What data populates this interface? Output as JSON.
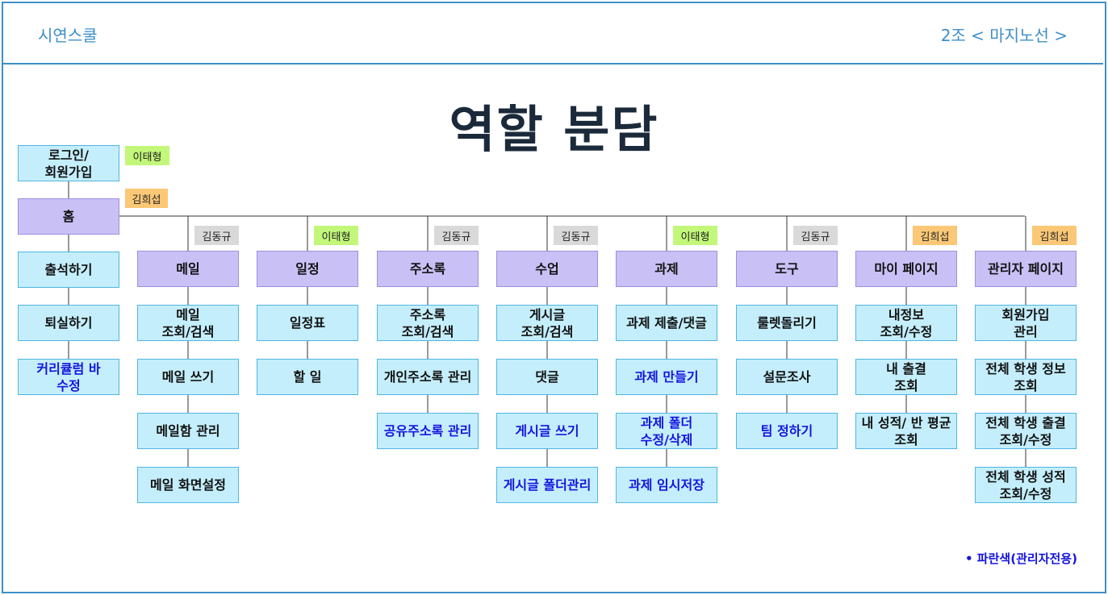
{
  "header": {
    "brand": "시연스쿨",
    "team": "2조 < 마지노선 >"
  },
  "title": "역할 분담",
  "left": {
    "login": "로그인/\n회원가입",
    "login_owner": "이태형",
    "home": "홈",
    "home_owner": "김희섭",
    "items": [
      {
        "label": "출석하기",
        "admin": false
      },
      {
        "label": "퇴실하기",
        "admin": false
      },
      {
        "label": "커리큘럼 바\n수정",
        "admin": true
      }
    ]
  },
  "columns": [
    {
      "label": "메일",
      "owner": "김동규",
      "items": [
        {
          "label": "메일\n조회/검색",
          "admin": false
        },
        {
          "label": "메일 쓰기",
          "admin": false
        },
        {
          "label": "메일함 관리",
          "admin": false
        },
        {
          "label": "메일 화면설정",
          "admin": false
        }
      ]
    },
    {
      "label": "일정",
      "owner": "이태형",
      "items": [
        {
          "label": "일정표",
          "admin": false
        },
        {
          "label": "할 일",
          "admin": false
        }
      ]
    },
    {
      "label": "주소록",
      "owner": "김동규",
      "items": [
        {
          "label": "주소록\n조회/검색",
          "admin": false
        },
        {
          "label": "개인주소록 관리",
          "admin": false
        },
        {
          "label": "공유주소록 관리",
          "admin": true
        }
      ]
    },
    {
      "label": "수업",
      "owner": "김동규",
      "items": [
        {
          "label": "게시글\n조회/검색",
          "admin": false
        },
        {
          "label": "댓글",
          "admin": false
        },
        {
          "label": "게시글 쓰기",
          "admin": true
        },
        {
          "label": "게시글 폴더관리",
          "admin": true
        }
      ]
    },
    {
      "label": "과제",
      "owner": "이태형",
      "items": [
        {
          "label": "과제 제출/댓글",
          "admin": false
        },
        {
          "label": "과제 만들기",
          "admin": true
        },
        {
          "label": "과제 폴더\n수정/삭제",
          "admin": true
        },
        {
          "label": "과제 임시저장",
          "admin": true
        }
      ]
    },
    {
      "label": "도구",
      "owner": "김동규",
      "items": [
        {
          "label": "룰렛돌리기",
          "admin": false
        },
        {
          "label": "설문조사",
          "admin": false
        },
        {
          "label": "팀 정하기",
          "admin": true
        }
      ]
    },
    {
      "label": "마이 페이지",
      "owner": "김희섭",
      "items": [
        {
          "label": "내정보\n조회/수정",
          "admin": false
        },
        {
          "label": "내 출결\n조회",
          "admin": false
        },
        {
          "label": "내 성적/ 반 평균\n조회",
          "admin": false
        }
      ]
    },
    {
      "label": "관리자 페이지",
      "owner": "김희섭",
      "items": [
        {
          "label": "회원가입\n관리",
          "admin": false
        },
        {
          "label": "전체 학생 정보\n조회",
          "admin": false
        },
        {
          "label": "전체 학생 출결\n조회/수정",
          "admin": false
        },
        {
          "label": "전체 학생 성적\n조회/수정",
          "admin": false
        }
      ]
    }
  ],
  "legend": "•  파란색(관리자전용)",
  "colors": {
    "owner_이태형": "#c2f77a",
    "owner_김희섭": "#fbc877",
    "owner_김동규": "#d9d9d9",
    "admin_text": "#1414e0"
  }
}
